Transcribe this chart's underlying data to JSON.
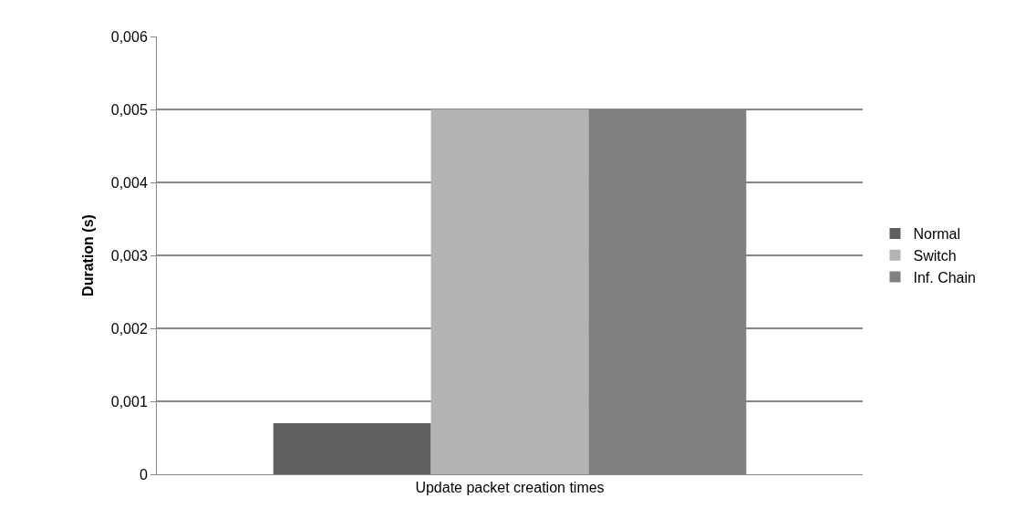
{
  "chart_data": {
    "type": "bar",
    "ylabel": "Duration (s)",
    "categories": [
      "Update packet creation times"
    ],
    "series": [
      {
        "name": "Normal",
        "color": "#606060",
        "values": [
          0.0007
        ]
      },
      {
        "name": "Switch",
        "color": "#b3b3b3",
        "values": [
          0.005
        ]
      },
      {
        "name": "Inf. Chain",
        "color": "#808080",
        "values": [
          0.005
        ]
      }
    ],
    "ylim": [
      0,
      0.006
    ],
    "yticks": [
      {
        "value": 0,
        "label": "0"
      },
      {
        "value": 0.001,
        "label": "0,001"
      },
      {
        "value": 0.002,
        "label": "0,002"
      },
      {
        "value": 0.003,
        "label": "0,003"
      },
      {
        "value": 0.004,
        "label": "0,004"
      },
      {
        "value": 0.005,
        "label": "0,005"
      },
      {
        "value": 0.006,
        "label": "0,006"
      }
    ],
    "grid": "y",
    "legend": "right"
  }
}
